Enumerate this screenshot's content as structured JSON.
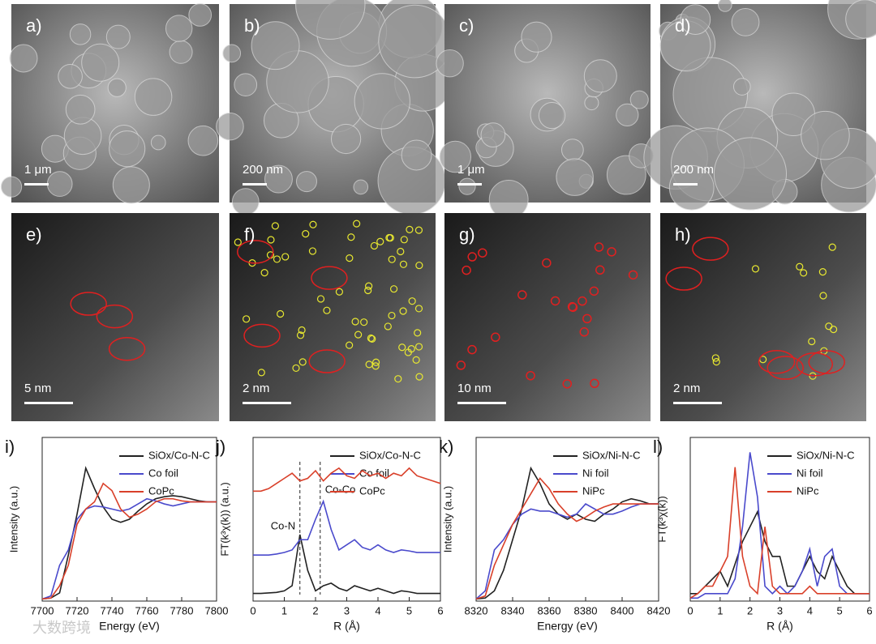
{
  "images": [
    {
      "label": "a)",
      "scale": "1 μm"
    },
    {
      "label": "b)",
      "scale": "200 nm"
    },
    {
      "label": "c)",
      "scale": "1 μm"
    },
    {
      "label": "d)",
      "scale": "200 nm"
    },
    {
      "label": "e)",
      "scale": "5 nm"
    },
    {
      "label": "f)",
      "scale": "2 nm"
    },
    {
      "label": "g)",
      "scale": "10 nm"
    },
    {
      "label": "h)",
      "scale": "2 nm"
    }
  ],
  "watermark": "大数跨境",
  "chart_data": [
    {
      "type": "line",
      "panel_label": "i)",
      "xlabel": "Energy (eV)",
      "ylabel": "Intensity (a.u.)",
      "xlim": [
        7700,
        7800
      ],
      "xticks": [
        7700,
        7720,
        7740,
        7760,
        7780,
        7800
      ],
      "ylim": [
        0,
        1.6
      ],
      "x": [
        7700,
        7705,
        7710,
        7715,
        7720,
        7725,
        7730,
        7735,
        7740,
        7745,
        7750,
        7755,
        7760,
        7765,
        7770,
        7775,
        7780,
        7785,
        7790,
        7795,
        7800
      ],
      "series": [
        {
          "name": "SiOx/Co-N-C",
          "color": "#222222",
          "values": [
            0.02,
            0.03,
            0.08,
            0.45,
            0.85,
            1.3,
            1.1,
            0.92,
            0.8,
            0.77,
            0.8,
            0.88,
            0.95,
            1.0,
            1.02,
            1.03,
            1.02,
            1.0,
            0.98,
            0.97,
            0.97
          ]
        },
        {
          "name": "Co foil",
          "color": "#4a4acc",
          "values": [
            0.02,
            0.05,
            0.35,
            0.5,
            0.8,
            0.9,
            0.93,
            0.92,
            0.9,
            0.88,
            0.9,
            0.95,
            1.0,
            0.98,
            0.95,
            0.93,
            0.95,
            0.97,
            0.97,
            0.97,
            0.97
          ]
        },
        {
          "name": "CoPc",
          "color": "#d9402a",
          "values": [
            0.02,
            0.03,
            0.15,
            0.35,
            0.75,
            0.9,
            0.97,
            1.15,
            1.08,
            0.9,
            0.82,
            0.85,
            0.9,
            0.97,
            1.0,
            1.0,
            0.98,
            0.97,
            0.97,
            0.97,
            0.97
          ]
        }
      ]
    },
    {
      "type": "line",
      "panel_label": "j)",
      "xlabel": "R (Å)",
      "ylabel": "FT(k³χ(k)) (a.u.)",
      "xlim": [
        0,
        6
      ],
      "xticks": [
        0,
        1,
        2,
        3,
        4,
        5,
        6
      ],
      "ylim": [
        0,
        3.2
      ],
      "vlines": [
        1.5,
        2.15
      ],
      "annotations": [
        "Co-N",
        "Co-Co"
      ],
      "x": [
        0,
        0.25,
        0.5,
        0.75,
        1,
        1.25,
        1.5,
        1.75,
        2,
        2.25,
        2.5,
        2.75,
        3,
        3.25,
        3.5,
        3.75,
        4,
        4.25,
        4.5,
        4.75,
        5,
        5.25,
        5.5,
        5.75,
        6
      ],
      "series": [
        {
          "name": "SiOx/Co-N-C",
          "color": "#222222",
          "values": [
            0.15,
            0.15,
            0.16,
            0.17,
            0.2,
            0.3,
            1.3,
            0.6,
            0.2,
            0.3,
            0.35,
            0.25,
            0.2,
            0.3,
            0.25,
            0.2,
            0.25,
            0.2,
            0.15,
            0.2,
            0.18,
            0.15,
            0.15,
            0.15,
            0.15
          ]
        },
        {
          "name": "Co foil",
          "color": "#4a4acc",
          "values": [
            0.9,
            0.9,
            0.9,
            0.92,
            0.95,
            1.0,
            1.2,
            1.2,
            1.6,
            1.95,
            1.4,
            1.0,
            1.1,
            1.2,
            1.05,
            1.0,
            1.1,
            1.0,
            0.95,
            1.0,
            0.98,
            0.95,
            0.95,
            0.95,
            0.95
          ]
        },
        {
          "name": "CoPc",
          "color": "#d9402a",
          "values": [
            2.15,
            2.15,
            2.2,
            2.3,
            2.4,
            2.5,
            2.35,
            2.4,
            2.55,
            2.35,
            2.5,
            2.6,
            2.45,
            2.4,
            2.55,
            2.45,
            2.5,
            2.4,
            2.5,
            2.45,
            2.6,
            2.45,
            2.4,
            2.35,
            2.3
          ]
        }
      ]
    },
    {
      "type": "line",
      "panel_label": "k)",
      "xlabel": "Energy (eV)",
      "ylabel": "Intensity (a.u.)",
      "xlim": [
        8320,
        8420
      ],
      "xticks": [
        8320,
        8340,
        8360,
        8380,
        8400,
        8420
      ],
      "ylim": [
        0,
        1.6
      ],
      "x": [
        8320,
        8325,
        8330,
        8335,
        8340,
        8345,
        8350,
        8355,
        8360,
        8365,
        8370,
        8375,
        8380,
        8385,
        8390,
        8395,
        8400,
        8405,
        8410,
        8415,
        8420
      ],
      "series": [
        {
          "name": "SiOx/Ni-N-C",
          "color": "#222222",
          "values": [
            0.02,
            0.03,
            0.1,
            0.3,
            0.6,
            0.9,
            1.3,
            1.15,
            0.95,
            0.85,
            0.8,
            0.85,
            0.8,
            0.78,
            0.85,
            0.9,
            0.97,
            1.0,
            0.98,
            0.95,
            0.95
          ]
        },
        {
          "name": "Ni foil",
          "color": "#4a4acc",
          "values": [
            0.02,
            0.1,
            0.5,
            0.6,
            0.75,
            0.85,
            0.9,
            0.88,
            0.88,
            0.85,
            0.82,
            0.85,
            0.95,
            0.9,
            0.85,
            0.85,
            0.88,
            0.92,
            0.95,
            0.95,
            0.95
          ]
        },
        {
          "name": "NiPc",
          "color": "#d9402a",
          "values": [
            0.02,
            0.05,
            0.35,
            0.55,
            0.75,
            0.9,
            1.05,
            1.2,
            1.1,
            0.95,
            0.85,
            0.78,
            0.82,
            0.88,
            0.92,
            0.95,
            0.95,
            0.95,
            0.95,
            0.95,
            0.95
          ]
        }
      ]
    },
    {
      "type": "line",
      "panel_label": "l)",
      "xlabel": "R (Å)",
      "ylabel": "FT(k³χ(k))",
      "xlim": [
        0,
        6
      ],
      "xticks": [
        0,
        1,
        2,
        3,
        4,
        5,
        6
      ],
      "ylim": [
        0,
        1.1
      ],
      "x": [
        0,
        0.25,
        0.5,
        0.75,
        1,
        1.25,
        1.5,
        1.75,
        2,
        2.25,
        2.5,
        2.75,
        3,
        3.25,
        3.5,
        3.75,
        4,
        4.25,
        4.5,
        4.75,
        5,
        5.25,
        5.5,
        5.75,
        6
      ],
      "series": [
        {
          "name": "SiOx/Ni-N-C",
          "color": "#222222",
          "values": [
            0.05,
            0.05,
            0.1,
            0.15,
            0.2,
            0.1,
            0.25,
            0.4,
            0.5,
            0.6,
            0.4,
            0.3,
            0.3,
            0.1,
            0.1,
            0.2,
            0.3,
            0.2,
            0.15,
            0.3,
            0.2,
            0.1,
            0.05,
            0.05,
            0.05
          ]
        },
        {
          "name": "Ni foil",
          "color": "#4a4acc",
          "values": [
            0.02,
            0.02,
            0.05,
            0.05,
            0.05,
            0.05,
            0.15,
            0.5,
            1.0,
            0.7,
            0.1,
            0.05,
            0.1,
            0.05,
            0.1,
            0.2,
            0.35,
            0.1,
            0.3,
            0.35,
            0.1,
            0.05,
            0.05,
            0.05,
            0.05
          ]
        },
        {
          "name": "NiPc",
          "color": "#d9402a",
          "values": [
            0.02,
            0.05,
            0.1,
            0.1,
            0.2,
            0.3,
            0.9,
            0.3,
            0.1,
            0.05,
            0.5,
            0.1,
            0.05,
            0.05,
            0.05,
            0.05,
            0.1,
            0.05,
            0.05,
            0.05,
            0.05,
            0.05,
            0.05,
            0.05,
            0.05
          ]
        }
      ]
    }
  ]
}
